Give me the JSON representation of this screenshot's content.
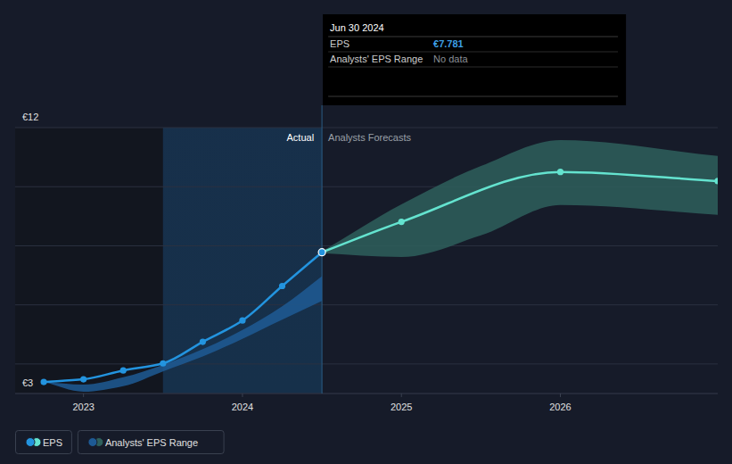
{
  "chart_data": {
    "type": "line",
    "xlim": [
      2022.57,
      2026.99
    ],
    "xticks": [
      2023,
      2024,
      2025,
      2026
    ],
    "ylim": [
      3,
      12
    ],
    "yticks": [
      {
        "value": 3,
        "label": "€3"
      },
      {
        "value": 4,
        "label": null
      },
      {
        "value": 6,
        "label": null
      },
      {
        "value": 8,
        "label": null
      },
      {
        "value": 10,
        "label": null
      },
      {
        "value": 12,
        "label": "€12"
      }
    ],
    "grid": true,
    "legend": "bottom-left",
    "annotations": [
      "Actual",
      "Analysts Forecasts"
    ],
    "tooltip": {
      "title": "Jun 30 2024",
      "rows": [
        [
          "EPS",
          "€7.781"
        ],
        [
          "Analysts' EPS Range",
          "No data"
        ]
      ]
    },
    "series": [
      {
        "name": "EPS",
        "type": "line",
        "color": "#2394df",
        "marker": "circle",
        "x": [
          2022.75,
          2023.0,
          2023.25,
          2023.5,
          2023.75,
          2024.0,
          2024.25,
          2024.5
        ],
        "values": [
          3.39,
          3.48,
          3.78,
          4.02,
          4.75,
          5.47,
          6.64,
          7.781
        ]
      },
      {
        "name": "EPS",
        "type": "line",
        "color": "#64e3cf",
        "marker": "circle",
        "x": [
          2024.5,
          2025.0,
          2026.0,
          2026.99
        ],
        "values": [
          7.781,
          8.81,
          10.5,
          10.19
        ]
      },
      {
        "name": "Analysts' EPS Range",
        "type": "area",
        "color": "#1e5a94",
        "x": [
          2022.75,
          2023.0,
          2023.25,
          2023.5,
          2023.75,
          2024.0,
          2024.25,
          2024.5
        ],
        "low": [
          3.39,
          3.06,
          3.25,
          3.75,
          4.25,
          4.85,
          5.5,
          6.13
        ],
        "high": [
          3.39,
          3.3,
          3.55,
          3.97,
          4.5,
          5.15,
          5.95,
          6.97
        ]
      },
      {
        "name": "Analysts' EPS Range",
        "type": "area",
        "color": "#2e5f5c",
        "x": [
          2024.5,
          2025.0,
          2025.5,
          2026.0,
          2026.99
        ],
        "low": [
          7.75,
          7.62,
          8.35,
          9.38,
          9.05
        ],
        "high": [
          7.81,
          9.4,
          10.7,
          11.58,
          11.04
        ]
      }
    ]
  }
}
